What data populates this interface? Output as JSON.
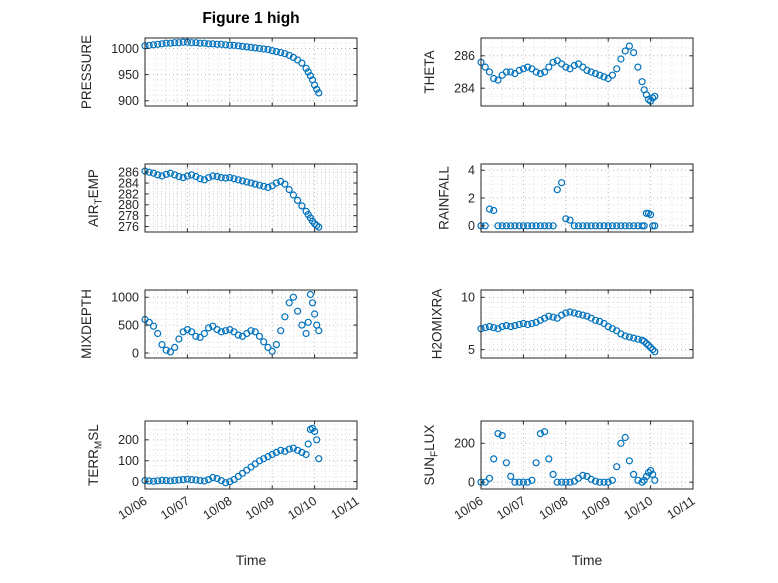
{
  "figure": {
    "title": "Figure 1 high",
    "xlabel": "Time",
    "marker_color": "#0072BD",
    "axis_color": "#262626",
    "grid_major": "#b8b8b8",
    "grid_minor": "#dcdcdc",
    "x_tick_labels": [
      "10/06",
      "10/07",
      "10/08",
      "10/09",
      "10/10",
      "10/11"
    ],
    "time_days": [
      0,
      0.1,
      0.2,
      0.3,
      0.4,
      0.5,
      0.6,
      0.7,
      0.8,
      0.9,
      1,
      1.1,
      1.2,
      1.3,
      1.4,
      1.5,
      1.6,
      1.7,
      1.8,
      1.9,
      2,
      2.1,
      2.2,
      2.3,
      2.4,
      2.5,
      2.6,
      2.7,
      2.8,
      2.9,
      3,
      3.1,
      3.2,
      3.3,
      3.4,
      3.5,
      3.6,
      3.7,
      3.8,
      3.85,
      3.9,
      3.95,
      4,
      4.05,
      4.1
    ]
  },
  "chart_data": [
    {
      "id": "pressure",
      "type": "scatter",
      "row": 0,
      "col": 0,
      "ylabel": {
        "pre": "PRESSURE",
        "sub": "",
        "post": ""
      },
      "yticks": [
        900,
        950,
        1000
      ],
      "ylim": [
        890,
        1020
      ],
      "y_minor_step": 10,
      "xlim": [
        0,
        5
      ],
      "xticks": [
        0,
        1,
        2,
        3,
        4,
        5
      ],
      "x_minor_step": 0.25,
      "show_x_labels": false,
      "y": [
        1005,
        1006,
        1007,
        1008,
        1009,
        1010,
        1010,
        1011,
        1011,
        1012,
        1012,
        1011,
        1011,
        1010,
        1010,
        1009,
        1009,
        1008,
        1008,
        1007,
        1006,
        1006,
        1005,
        1004,
        1003,
        1002,
        1001,
        1000,
        999,
        998,
        996,
        994,
        992,
        990,
        987,
        983,
        978,
        972,
        962,
        955,
        948,
        940,
        930,
        922,
        915
      ]
    },
    {
      "id": "theta",
      "type": "scatter",
      "row": 0,
      "col": 1,
      "ylabel": {
        "pre": "THETA",
        "sub": "",
        "post": ""
      },
      "yticks": [
        284,
        286
      ],
      "ylim": [
        282.9,
        287.1
      ],
      "y_minor_step": 0.5,
      "xlim": [
        0,
        5
      ],
      "xticks": [
        0,
        1,
        2,
        3,
        4,
        5
      ],
      "x_minor_step": 0.25,
      "show_x_labels": false,
      "y": [
        285.6,
        285.3,
        285.0,
        284.6,
        284.5,
        284.8,
        285.0,
        285.0,
        284.9,
        285.1,
        285.2,
        285.3,
        285.2,
        285.0,
        284.9,
        285.0,
        285.3,
        285.6,
        285.7,
        285.5,
        285.3,
        285.2,
        285.4,
        285.5,
        285.3,
        285.1,
        285.0,
        284.9,
        284.8,
        284.7,
        284.6,
        284.8,
        285.2,
        285.8,
        286.3,
        286.6,
        286.2,
        285.3,
        284.4,
        283.9,
        283.6,
        283.3,
        283.2,
        283.4,
        283.5
      ]
    },
    {
      "id": "airtemp",
      "type": "scatter",
      "row": 1,
      "col": 0,
      "ylabel": {
        "pre": "AIR",
        "sub": "T",
        "post": "EMP"
      },
      "yticks": [
        276,
        278,
        280,
        282,
        284,
        286
      ],
      "ylim": [
        275,
        287.5
      ],
      "y_minor_step": 0.5,
      "xlim": [
        0,
        5
      ],
      "xticks": [
        0,
        1,
        2,
        3,
        4,
        5
      ],
      "x_minor_step": 0.25,
      "show_x_labels": false,
      "y": [
        286.2,
        286.0,
        285.8,
        285.5,
        285.3,
        285.6,
        285.8,
        285.5,
        285.2,
        285.0,
        285.3,
        285.5,
        285.2,
        284.8,
        284.6,
        285.0,
        285.3,
        285.2,
        285.0,
        284.9,
        285.0,
        284.8,
        284.6,
        284.4,
        284.2,
        284.0,
        283.8,
        283.6,
        283.4,
        283.2,
        283.5,
        284.0,
        284.3,
        283.8,
        282.8,
        281.8,
        280.8,
        279.8,
        278.8,
        278.2,
        277.6,
        277.0,
        276.5,
        276.2,
        275.9
      ]
    },
    {
      "id": "rainfall",
      "type": "scatter",
      "row": 1,
      "col": 1,
      "ylabel": {
        "pre": "RAINFALL",
        "sub": "",
        "post": ""
      },
      "yticks": [
        0,
        2,
        4
      ],
      "ylim": [
        -0.45,
        4.45
      ],
      "y_minor_step": 0.5,
      "xlim": [
        0,
        5
      ],
      "xticks": [
        0,
        1,
        2,
        3,
        4,
        5
      ],
      "x_minor_step": 0.25,
      "show_x_labels": false,
      "y": [
        0,
        0,
        1.2,
        1.1,
        0,
        0,
        0,
        0,
        0,
        0,
        0,
        0,
        0,
        0,
        0,
        0,
        0,
        0,
        2.6,
        3.1,
        0.5,
        0.4,
        0,
        0,
        0,
        0,
        0,
        0,
        0,
        0,
        0,
        0,
        0,
        0,
        0,
        0,
        0,
        0,
        0,
        0,
        0.9,
        0.9,
        0.8,
        0,
        0
      ]
    },
    {
      "id": "mixdepth",
      "type": "scatter",
      "row": 2,
      "col": 0,
      "ylabel": {
        "pre": "MIXDEPTH",
        "sub": "",
        "post": ""
      },
      "yticks": [
        0,
        500,
        1000
      ],
      "ylim": [
        -90,
        1130
      ],
      "y_minor_step": 100,
      "xlim": [
        0,
        5
      ],
      "xticks": [
        0,
        1,
        2,
        3,
        4,
        5
      ],
      "x_minor_step": 0.25,
      "show_x_labels": false,
      "y": [
        600,
        550,
        480,
        350,
        150,
        50,
        20,
        100,
        250,
        380,
        420,
        380,
        300,
        280,
        350,
        450,
        480,
        420,
        380,
        400,
        420,
        380,
        320,
        300,
        350,
        400,
        380,
        300,
        200,
        100,
        30,
        150,
        400,
        650,
        900,
        1000,
        750,
        500,
        350,
        550,
        1050,
        900,
        700,
        500,
        400
      ]
    },
    {
      "id": "h2omixra",
      "type": "scatter",
      "row": 2,
      "col": 1,
      "ylabel": {
        "pre": "H2OMIXRA",
        "sub": "",
        "post": ""
      },
      "yticks": [
        5,
        10
      ],
      "ylim": [
        4.2,
        10.7
      ],
      "y_minor_step": 0.5,
      "xlim": [
        0,
        5
      ],
      "xticks": [
        0,
        1,
        2,
        3,
        4,
        5
      ],
      "x_minor_step": 0.25,
      "show_x_labels": false,
      "y": [
        7.0,
        7.1,
        7.2,
        7.1,
        7.0,
        7.2,
        7.3,
        7.2,
        7.3,
        7.4,
        7.5,
        7.4,
        7.5,
        7.6,
        7.8,
        8.0,
        8.2,
        8.1,
        8.0,
        8.3,
        8.5,
        8.6,
        8.5,
        8.4,
        8.3,
        8.2,
        8.0,
        7.8,
        7.7,
        7.5,
        7.2,
        7.0,
        6.8,
        6.5,
        6.3,
        6.2,
        6.1,
        6.0,
        5.9,
        5.8,
        5.6,
        5.4,
        5.2,
        5.0,
        4.8
      ]
    },
    {
      "id": "terrmsl",
      "type": "scatter",
      "row": 3,
      "col": 0,
      "ylabel": {
        "pre": "TERR",
        "sub": "M",
        "post": "SL"
      },
      "yticks": [
        0,
        100,
        200
      ],
      "ylim": [
        -35,
        290
      ],
      "y_minor_step": 25,
      "xlim": [
        0,
        5
      ],
      "xticks": [
        0,
        1,
        2,
        3,
        4,
        5
      ],
      "x_minor_step": 0.25,
      "show_x_labels": true,
      "y": [
        5,
        3,
        2,
        4,
        6,
        5,
        4,
        6,
        8,
        10,
        12,
        10,
        8,
        5,
        3,
        10,
        20,
        15,
        5,
        -5,
        0,
        10,
        25,
        40,
        55,
        70,
        85,
        100,
        110,
        120,
        130,
        140,
        150,
        145,
        155,
        160,
        150,
        140,
        130,
        180,
        250,
        255,
        240,
        200,
        110
      ]
    },
    {
      "id": "sunflux",
      "type": "scatter",
      "row": 3,
      "col": 1,
      "ylabel": {
        "pre": "SUN",
        "sub": "F",
        "post": "LUX"
      },
      "yticks": [
        0,
        200
      ],
      "ylim": [
        -35,
        315
      ],
      "y_minor_step": 25,
      "xlim": [
        0,
        5
      ],
      "xticks": [
        0,
        1,
        2,
        3,
        4,
        5
      ],
      "x_minor_step": 0.25,
      "show_x_labels": true,
      "y": [
        0,
        0,
        20,
        120,
        250,
        240,
        100,
        30,
        0,
        0,
        0,
        0,
        10,
        100,
        250,
        260,
        120,
        40,
        0,
        0,
        0,
        0,
        5,
        20,
        35,
        30,
        15,
        5,
        0,
        0,
        0,
        10,
        80,
        200,
        230,
        110,
        40,
        10,
        0,
        10,
        30,
        50,
        60,
        40,
        10
      ]
    }
  ]
}
